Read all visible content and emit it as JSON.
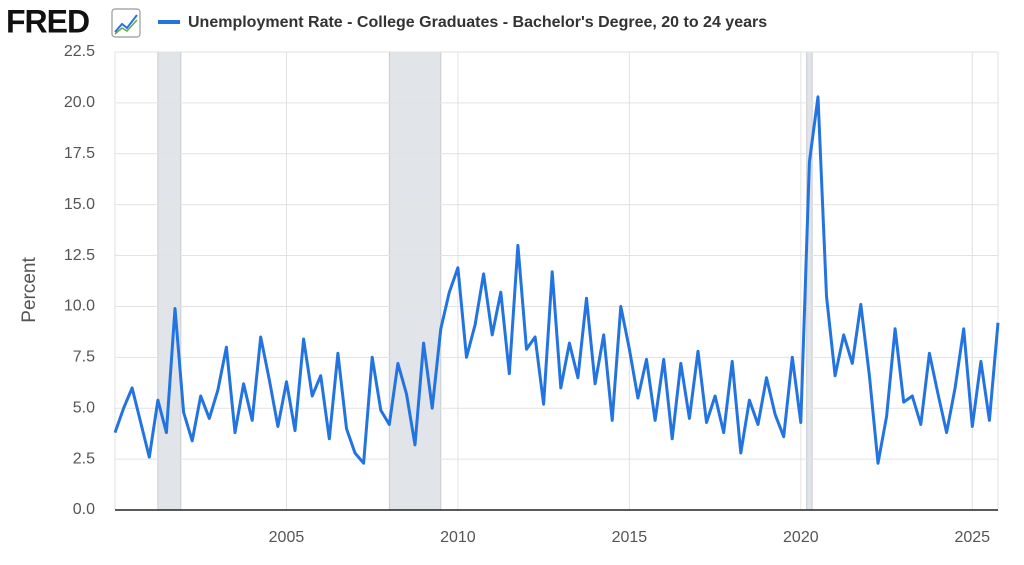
{
  "logo": "FRED",
  "chart_data": {
    "type": "line",
    "title": "Unemployment Rate - College Graduates - Bachelor's Degree, 20 to 24 years",
    "y_label": "Percent",
    "xlim": [
      2000,
      2025.75
    ],
    "xticks": [
      2005,
      2010,
      2015,
      2020,
      2025
    ],
    "ylim": [
      0,
      22.5
    ],
    "yticks": [
      {
        "value": 0,
        "label": "0.0"
      },
      {
        "value": 2.5,
        "label": "2.5"
      },
      {
        "value": 5,
        "label": "5.0"
      },
      {
        "value": 7.5,
        "label": "7.5"
      },
      {
        "value": 10,
        "label": "10.0"
      },
      {
        "value": 12.5,
        "label": "12.5"
      },
      {
        "value": 15,
        "label": "15.0"
      },
      {
        "value": 17.5,
        "label": "17.5"
      },
      {
        "value": 20,
        "label": "20.0"
      },
      {
        "value": 22.5,
        "label": "22.5"
      }
    ],
    "grid": true,
    "recessions": [
      {
        "start": 2001.25,
        "end": 2001.92
      },
      {
        "start": 2008,
        "end": 2009.5
      },
      {
        "start": 2020.17,
        "end": 2020.33
      }
    ],
    "x": [
      2000,
      2000.25,
      2000.5,
      2000.75,
      2001,
      2001.25,
      2001.5,
      2001.75,
      2002,
      2002.25,
      2002.5,
      2002.75,
      2003,
      2003.25,
      2003.5,
      2003.75,
      2004,
      2004.25,
      2004.5,
      2004.75,
      2005,
      2005.25,
      2005.5,
      2005.75,
      2006,
      2006.25,
      2006.5,
      2006.75,
      2007,
      2007.25,
      2007.5,
      2007.75,
      2008,
      2008.25,
      2008.5,
      2008.75,
      2009,
      2009.25,
      2009.5,
      2009.75,
      2010,
      2010.25,
      2010.5,
      2010.75,
      2011,
      2011.25,
      2011.5,
      2011.75,
      2012,
      2012.25,
      2012.5,
      2012.75,
      2013,
      2013.25,
      2013.5,
      2013.75,
      2014,
      2014.25,
      2014.5,
      2014.75,
      2015,
      2015.25,
      2015.5,
      2015.75,
      2016,
      2016.25,
      2016.5,
      2016.75,
      2017,
      2017.25,
      2017.5,
      2017.75,
      2018,
      2018.25,
      2018.5,
      2018.75,
      2019,
      2019.25,
      2019.5,
      2019.75,
      2020,
      2020.25,
      2020.5,
      2020.75,
      2021,
      2021.25,
      2021.5,
      2021.75,
      2022,
      2022.25,
      2022.5,
      2022.75,
      2023,
      2023.25,
      2023.5,
      2023.75,
      2024,
      2024.25,
      2024.5,
      2024.75,
      2025,
      2025.25,
      2025.5,
      2025.75
    ],
    "series": [
      {
        "name": "Unemployment Rate - College Graduates - Bachelor's Degree, 20 to 24 years",
        "color": "#2374e1",
        "values": [
          3.8,
          5.0,
          6.0,
          4.3,
          2.6,
          5.4,
          3.8,
          9.9,
          4.8,
          3.4,
          5.6,
          4.5,
          5.9,
          8.0,
          3.8,
          6.2,
          4.4,
          8.5,
          6.4,
          4.1,
          6.3,
          3.9,
          8.4,
          5.6,
          6.6,
          3.5,
          7.7,
          4.0,
          2.8,
          2.3,
          7.5,
          4.9,
          4.2,
          7.2,
          5.7,
          3.2,
          8.2,
          5.0,
          8.9,
          10.7,
          11.9,
          7.5,
          9.1,
          11.6,
          8.6,
          10.7,
          6.7,
          13.0,
          7.9,
          8.5,
          5.2,
          11.7,
          6.0,
          8.2,
          6.5,
          10.4,
          6.2,
          8.6,
          4.4,
          10.0,
          7.9,
          5.5,
          7.4,
          4.4,
          7.4,
          3.5,
          7.2,
          4.5,
          7.8,
          4.3,
          5.6,
          3.8,
          7.3,
          2.8,
          5.4,
          4.2,
          6.5,
          4.7,
          3.6,
          7.5,
          4.3,
          17.1,
          20.3,
          10.5,
          6.6,
          8.6,
          7.2,
          10.1,
          6.6,
          2.3,
          4.6,
          8.9,
          5.3,
          5.6,
          4.2,
          7.7,
          5.7,
          3.8,
          6.0,
          8.9,
          4.1,
          7.3,
          4.4,
          9.2
        ]
      }
    ]
  }
}
